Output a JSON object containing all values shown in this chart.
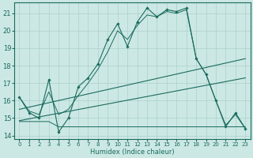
{
  "xlabel": "Humidex (Indice chaleur)",
  "xlim": [
    -0.5,
    23.5
  ],
  "ylim": [
    13.8,
    21.6
  ],
  "xticks": [
    0,
    1,
    2,
    3,
    4,
    5,
    6,
    7,
    8,
    9,
    10,
    11,
    12,
    13,
    14,
    15,
    16,
    17,
    18,
    19,
    20,
    21,
    22,
    23
  ],
  "yticks": [
    14,
    15,
    16,
    17,
    18,
    19,
    20,
    21
  ],
  "bg_color": "#cce8e4",
  "line_color": "#1a6b5e",
  "grid_color": "#aad0ca",
  "main_x": [
    0,
    1,
    2,
    3,
    4,
    5,
    6,
    7,
    8,
    9,
    10,
    11,
    12,
    13,
    14,
    15,
    16,
    17,
    18,
    19,
    20,
    21,
    22,
    23
  ],
  "main_y": [
    16.2,
    15.3,
    15.0,
    17.2,
    14.2,
    15.0,
    16.8,
    17.3,
    18.1,
    19.5,
    20.4,
    19.1,
    20.5,
    21.3,
    20.8,
    21.2,
    21.1,
    21.3,
    18.4,
    17.5,
    16.0,
    14.5,
    15.3,
    14.4
  ],
  "smooth_x": [
    0,
    1,
    2,
    3,
    4,
    5,
    6,
    7,
    8,
    9,
    10,
    11,
    12,
    13,
    14,
    15,
    16,
    17,
    18,
    19,
    20,
    21,
    22,
    23
  ],
  "smooth_y": [
    16.2,
    15.4,
    15.2,
    16.5,
    15.2,
    15.5,
    16.3,
    17.0,
    17.8,
    18.8,
    20.0,
    19.5,
    20.3,
    20.9,
    20.8,
    21.1,
    21.0,
    21.2,
    18.4,
    17.5,
    16.0,
    14.6,
    15.2,
    14.4
  ],
  "trend1_x": [
    0,
    23
  ],
  "trend1_y": [
    15.5,
    18.4
  ],
  "trend2_x": [
    0,
    23
  ],
  "trend2_y": [
    14.85,
    17.3
  ],
  "flat_x": [
    0,
    1,
    2,
    3,
    4,
    9,
    10,
    11,
    12,
    13,
    14,
    15,
    16,
    17,
    18,
    19,
    20,
    21,
    22,
    23
  ],
  "flat_y": [
    14.8,
    14.8,
    14.8,
    14.8,
    14.5,
    14.5,
    14.5,
    14.5,
    14.5,
    14.5,
    14.5,
    14.5,
    14.5,
    14.5,
    14.5,
    14.5,
    14.5,
    14.5,
    14.5,
    14.5
  ]
}
